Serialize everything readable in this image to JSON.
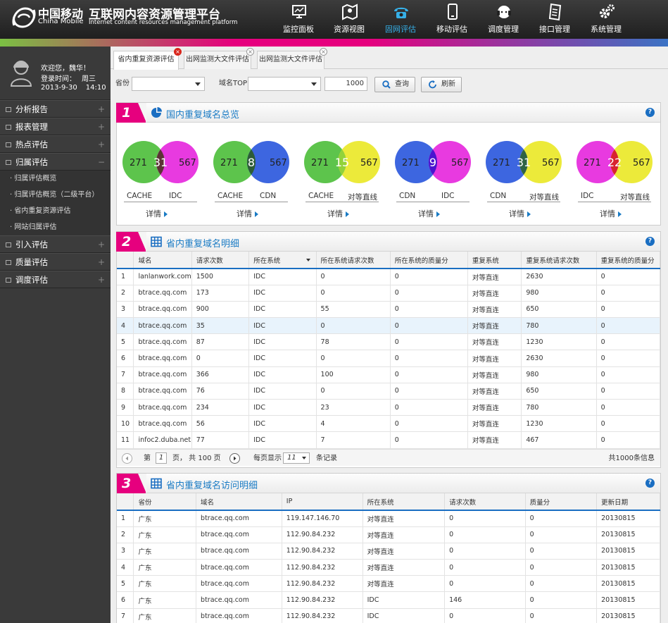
{
  "header": {
    "brand_cn": "中国移动",
    "brand_en": "China Mobile",
    "title_cn": "互联网内容资源管理平台",
    "title_en": "Internet content resources management platform"
  },
  "nav": [
    {
      "label": "监控面板",
      "icon": "monitor-icon"
    },
    {
      "label": "资源视图",
      "icon": "map-icon"
    },
    {
      "label": "固网评估",
      "icon": "phone-icon"
    },
    {
      "label": "移动评估",
      "icon": "mobile-icon"
    },
    {
      "label": "调度管理",
      "icon": "headset-icon"
    },
    {
      "label": "接口管理",
      "icon": "document-icon"
    },
    {
      "label": "系统管理",
      "icon": "gear-icon"
    }
  ],
  "nav_active": "固网评估",
  "user": {
    "welcome": "欢迎您，魏华！",
    "login_label": "登录时间：",
    "weekday": "周三",
    "date": "2013-9-30",
    "time": "14:10"
  },
  "sidebar": {
    "menus_top": [
      "分析报告",
      "报表管理",
      "热点评估"
    ],
    "expanded": "归属评估",
    "subs": [
      "· 归属评估概览",
      "· 归属评估概览（二级平台）",
      "· 省内重复资源评估",
      "· 网站归属评估"
    ],
    "menus_bottom": [
      "引入评估",
      "质量评估",
      "调度评估"
    ]
  },
  "tabs": [
    {
      "label": "省内重复资源评估",
      "active": true
    },
    {
      "label": "出网监测大文件评估",
      "active": false
    },
    {
      "label": "出网监测大文件评估",
      "active": false
    }
  ],
  "filters": {
    "province_label": "省份",
    "province_value": "",
    "domain_label": "域名TOP",
    "domain_value": "",
    "top_value": "1000",
    "query": "查询",
    "refresh": "刷新"
  },
  "colors": {
    "green": "#5dc44c",
    "pink": "#e83ae0",
    "blue": "#3d66e0",
    "yellow": "#ecea3a",
    "accent": "#e6007e",
    "link": "#1a7bc4"
  },
  "panel1": {
    "num": "1",
    "title": "国内重复域名总览",
    "detail": "详情",
    "venns": [
      {
        "a": "271",
        "b": "567",
        "c": "31",
        "la": "CACHE",
        "lb": "IDC",
        "ca": "#5dc44c",
        "cb": "#e83ae0",
        "cc": "#5c3335"
      },
      {
        "a": "271",
        "b": "567",
        "c": "8",
        "la": "CACHE",
        "lb": "CDN",
        "ca": "#5dc44c",
        "cb": "#3d66e0",
        "cc": "#2d5c37"
      },
      {
        "a": "271",
        "b": "567",
        "c": "15",
        "la": "CACHE",
        "lb": "对等直线",
        "ca": "#5dc44c",
        "cb": "#ecea3a",
        "cc": "#92d23a"
      },
      {
        "a": "271",
        "b": "567",
        "c": "9",
        "la": "CDN",
        "lb": "IDC",
        "ca": "#3d66e0",
        "cb": "#e83ae0",
        "cc": "#4a14cf"
      },
      {
        "a": "271",
        "b": "567",
        "c": "31",
        "la": "CDN",
        "lb": "对等直线",
        "ca": "#3d66e0",
        "cb": "#ecea3a",
        "cc": "#2f6345"
      },
      {
        "a": "271",
        "b": "567",
        "c": "22",
        "la": "IDC",
        "lb": "对等直线",
        "ca": "#e83ae0",
        "cb": "#ecea3a",
        "cc": "#d8242f"
      }
    ]
  },
  "panel2": {
    "num": "2",
    "title": "省内重复域名明细",
    "headers": [
      "",
      "域名",
      "请求次数",
      "所在系统",
      "所在系统请求次数",
      "所在系统的质量分",
      "重复系统",
      "重复系统请求次数",
      "重复系统的质量分"
    ],
    "rows": [
      [
        "1",
        "lanlanwork.com",
        "1500",
        "IDC",
        "0",
        "0",
        "对等直连",
        "2630",
        "0"
      ],
      [
        "2",
        "btrace.qq.com",
        "173",
        "IDC",
        "0",
        "0",
        "对等直连",
        "980",
        "0"
      ],
      [
        "3",
        "btrace.qq.com",
        "900",
        "IDC",
        "55",
        "0",
        "对等直连",
        "650",
        "0"
      ],
      [
        "4",
        "btrace.qq.com",
        "35",
        "IDC",
        "0",
        "0",
        "对等直连",
        "780",
        "0"
      ],
      [
        "5",
        "btrace.qq.com",
        "87",
        "IDC",
        "78",
        "0",
        "对等直连",
        "1230",
        "0"
      ],
      [
        "6",
        "btrace.qq.com",
        "0",
        "IDC",
        "0",
        "0",
        "对等直连",
        "2630",
        "0"
      ],
      [
        "7",
        "btrace.qq.com",
        "366",
        "IDC",
        "100",
        "0",
        "对等直连",
        "980",
        "0"
      ],
      [
        "8",
        "btrace.qq.com",
        "76",
        "IDC",
        "0",
        "0",
        "对等直连",
        "650",
        "0"
      ],
      [
        "9",
        "btrace.qq.com",
        "234",
        "IDC",
        "23",
        "0",
        "对等直连",
        "780",
        "0"
      ],
      [
        "10",
        "btrace.qq.com",
        "56",
        "IDC",
        "4",
        "0",
        "对等直连",
        "1230",
        "0"
      ],
      [
        "11",
        "infoc2.duba.net",
        "77",
        "IDC",
        "7",
        "0",
        "对等直连",
        "467",
        "0"
      ]
    ],
    "pager": {
      "page_label": "第",
      "page": "1",
      "pages_text": "页， 共 100 页",
      "per_label": "每页显示",
      "per": "11",
      "records_label": "条记录",
      "total": "共1000条信息"
    }
  },
  "panel3": {
    "num": "3",
    "title": "省内重复域名访问明细",
    "headers": [
      "",
      "省份",
      "域名",
      "IP",
      "所在系统",
      "请求次数",
      "质量分",
      "更新日期"
    ],
    "rows": [
      [
        "1",
        "广东",
        "btrace.qq.com",
        "119.147.146.70",
        "对等直连",
        "0",
        "0",
        "20130815"
      ],
      [
        "2",
        "广东",
        "btrace.qq.com",
        "112.90.84.232",
        "对等直连",
        "0",
        "0",
        "20130815"
      ],
      [
        "3",
        "广东",
        "btrace.qq.com",
        "112.90.84.232",
        "对等直连",
        "0",
        "0",
        "20130815"
      ],
      [
        "4",
        "广东",
        "btrace.qq.com",
        "112.90.84.232",
        "对等直连",
        "0",
        "0",
        "20130815"
      ],
      [
        "5",
        "广东",
        "btrace.qq.com",
        "112.90.84.232",
        "对等直连",
        "0",
        "0",
        "20130815"
      ],
      [
        "6",
        "广东",
        "btrace.qq.com",
        "112.90.84.232",
        "IDC",
        "146",
        "0",
        "20130815"
      ],
      [
        "7",
        "广东",
        "btrace.qq.com",
        "112.90.84.232",
        "IDC",
        "0",
        "0",
        "20130815"
      ]
    ]
  }
}
